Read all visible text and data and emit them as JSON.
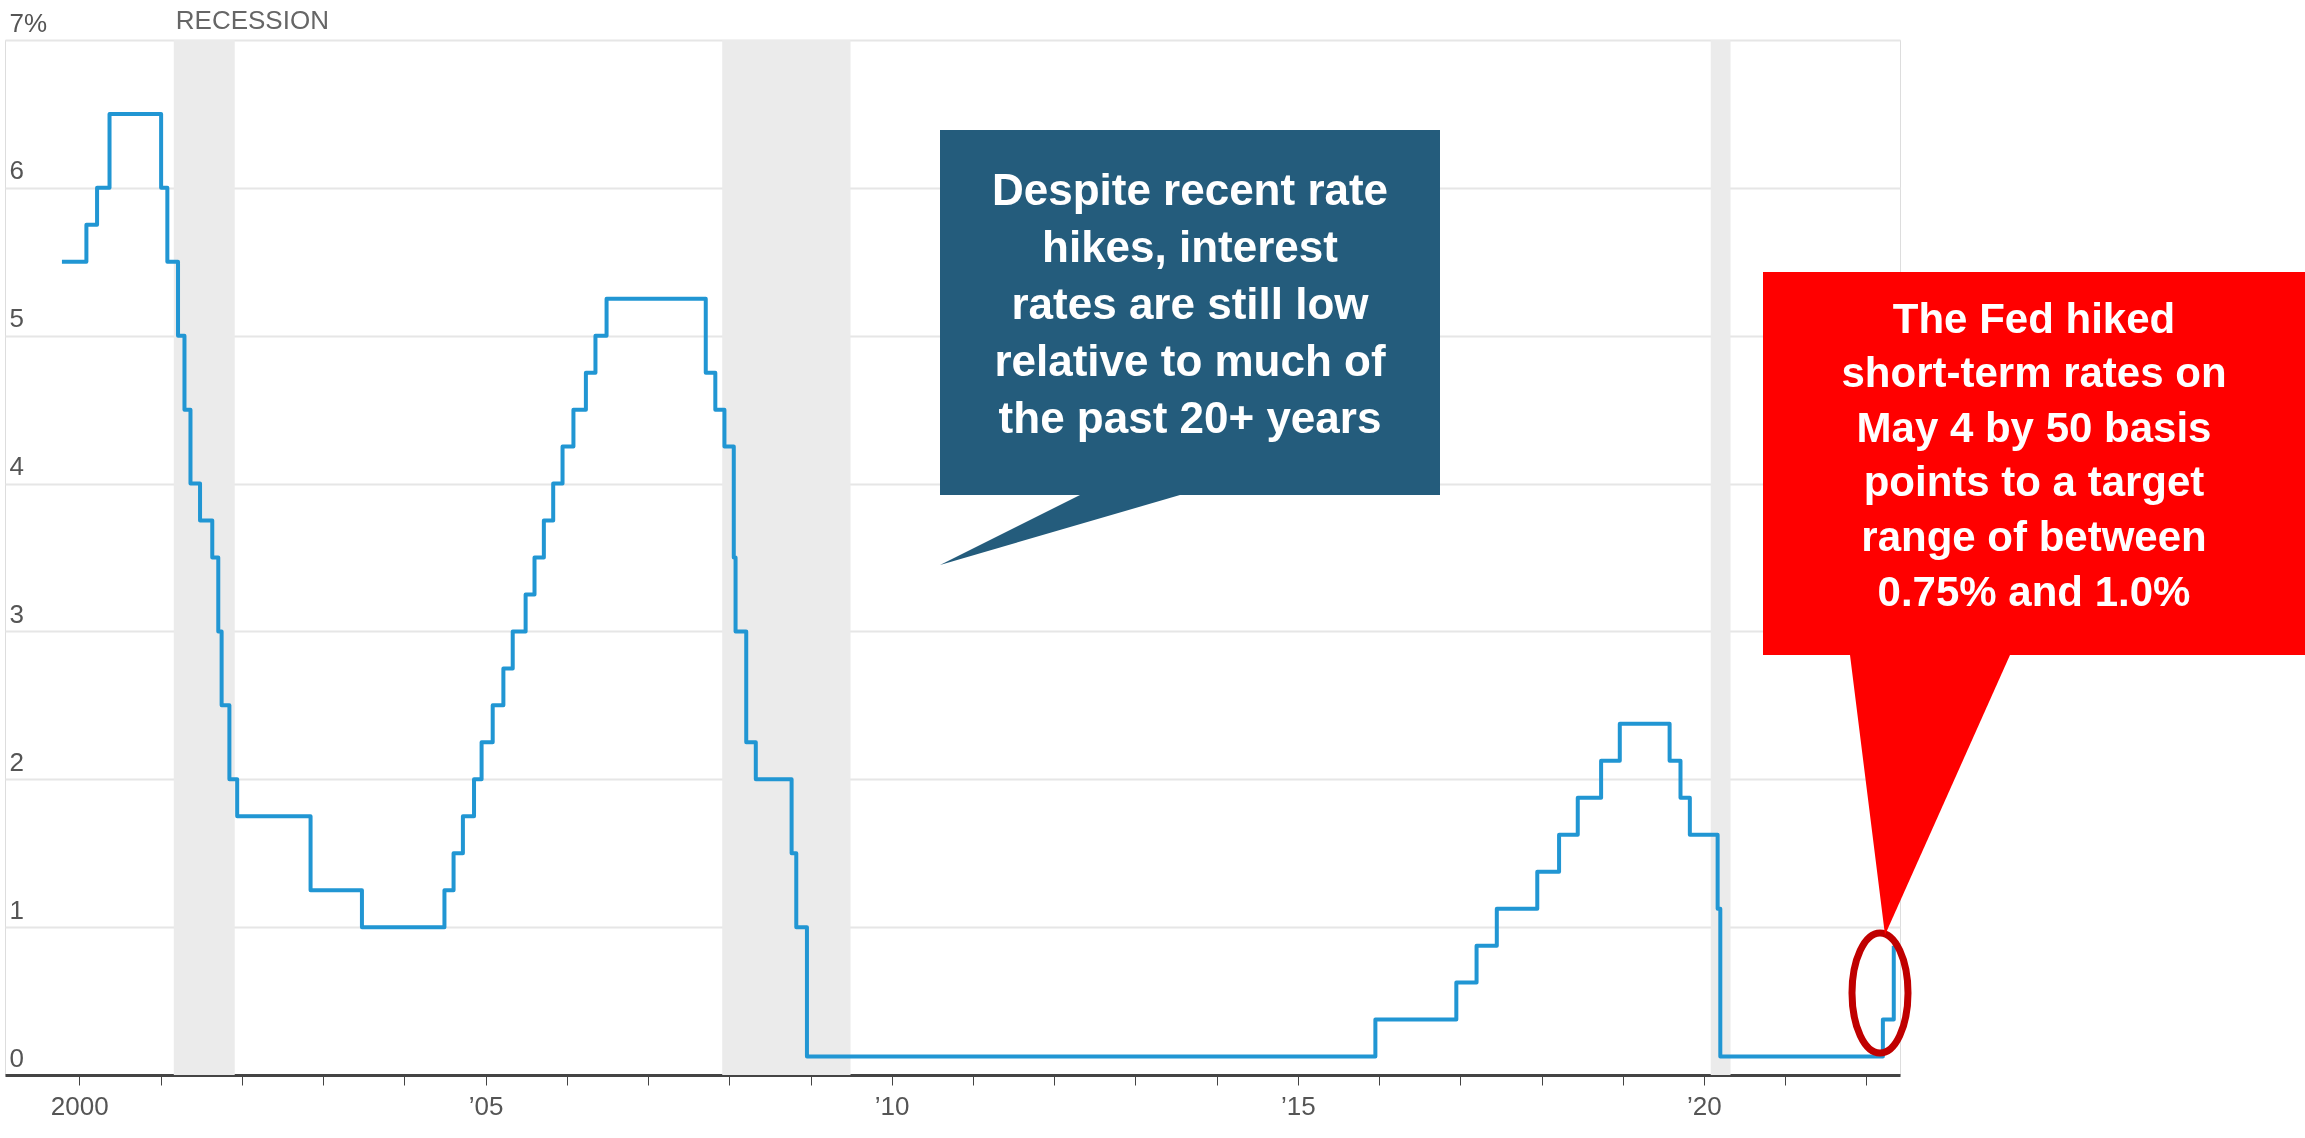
{
  "chart_data": {
    "type": "step",
    "x": [
      "1999-10-15",
      "2000-02-02",
      "2000-03-21",
      "2000-05-16",
      "2001-01-03",
      "2001-01-31",
      "2001-03-20",
      "2001-04-18",
      "2001-05-15",
      "2001-06-27",
      "2001-08-21",
      "2001-09-17",
      "2001-10-02",
      "2001-11-06",
      "2001-12-11",
      "2002-11-06",
      "2003-06-25",
      "2004-06-30",
      "2004-08-10",
      "2004-09-21",
      "2004-11-10",
      "2004-12-14",
      "2005-02-02",
      "2005-03-22",
      "2005-05-03",
      "2005-06-30",
      "2005-08-09",
      "2005-09-20",
      "2005-11-01",
      "2005-12-13",
      "2006-01-31",
      "2006-03-28",
      "2006-05-10",
      "2006-06-29",
      "2007-09-18",
      "2007-10-31",
      "2007-12-11",
      "2008-01-22",
      "2008-01-30",
      "2008-03-18",
      "2008-04-30",
      "2008-10-08",
      "2008-10-29",
      "2008-12-16",
      "2015-12-16",
      "2016-12-14",
      "2017-03-15",
      "2017-06-14",
      "2017-12-13",
      "2018-03-21",
      "2018-06-13",
      "2018-09-26",
      "2018-12-19",
      "2019-07-31",
      "2019-09-18",
      "2019-10-30",
      "2020-03-03",
      "2020-03-15",
      "2022-03-16",
      "2022-05-04"
    ],
    "series": [
      {
        "color": "#2196d3",
        "values": [
          5.5,
          5.75,
          6.0,
          6.5,
          6.0,
          5.5,
          5.0,
          4.5,
          4.0,
          3.75,
          3.5,
          3.0,
          2.5,
          2.0,
          1.75,
          1.25,
          1.0,
          1.25,
          1.5,
          1.75,
          2.0,
          2.25,
          2.5,
          2.75,
          3.0,
          3.25,
          3.5,
          3.75,
          4.0,
          4.25,
          4.5,
          4.75,
          5.0,
          5.25,
          4.75,
          4.5,
          4.25,
          3.5,
          3.0,
          2.25,
          2.0,
          1.5,
          1.0,
          0.125,
          0.375,
          0.625,
          0.875,
          1.125,
          1.375,
          1.625,
          1.875,
          2.125,
          2.375,
          2.125,
          1.875,
          1.625,
          1.125,
          0.125,
          0.375,
          0.875
        ]
      }
    ],
    "xlim": [
      "1999-02-01",
      "2022-06-01"
    ],
    "xticks": [
      {
        "value": "2000-01-01",
        "label": "2000"
      },
      {
        "value": "2001-01-01",
        "label": null
      },
      {
        "value": "2002-01-01",
        "label": null
      },
      {
        "value": "2003-01-01",
        "label": null
      },
      {
        "value": "2004-01-01",
        "label": null
      },
      {
        "value": "2005-01-01",
        "label": "’05"
      },
      {
        "value": "2006-01-01",
        "label": null
      },
      {
        "value": "2007-01-01",
        "label": null
      },
      {
        "value": "2008-01-01",
        "label": null
      },
      {
        "value": "2009-01-01",
        "label": null
      },
      {
        "value": "2010-01-01",
        "label": "’10"
      },
      {
        "value": "2011-01-01",
        "label": null
      },
      {
        "value": "2012-01-01",
        "label": null
      },
      {
        "value": "2013-01-01",
        "label": null
      },
      {
        "value": "2014-01-01",
        "label": null
      },
      {
        "value": "2015-01-01",
        "label": "’15"
      },
      {
        "value": "2016-01-01",
        "label": null
      },
      {
        "value": "2017-01-01",
        "label": null
      },
      {
        "value": "2018-01-01",
        "label": null
      },
      {
        "value": "2019-01-01",
        "label": null
      },
      {
        "value": "2020-01-01",
        "label": "’20"
      },
      {
        "value": "2021-01-01",
        "label": null
      },
      {
        "value": "2022-01-01",
        "label": null
      }
    ],
    "ylim": [
      0,
      7
    ],
    "yticks": [
      0,
      1,
      2,
      3,
      4,
      5,
      6,
      {
        "value": 7,
        "label": "7%"
      }
    ],
    "grid": "y",
    "bands": [
      {
        "axis": "x",
        "from": "2001-03-01",
        "to": "2001-11-30",
        "label": "RECESSION",
        "color": "#ebebeb"
      },
      {
        "axis": "x",
        "from": "2007-12-01",
        "to": "2009-06-30",
        "color": "#ebebeb"
      },
      {
        "axis": "x",
        "from": "2020-02-01",
        "to": "2020-04-30",
        "color": "#ebebeb"
      }
    ],
    "annotations": [
      "Despite recent rate hikes, interest rates are still low relative to much of the past 20+ years",
      "The Fed hiked short-term rates on May 4 by 50 basis points to a target range of between 0.75% and 1.0%"
    ]
  }
}
